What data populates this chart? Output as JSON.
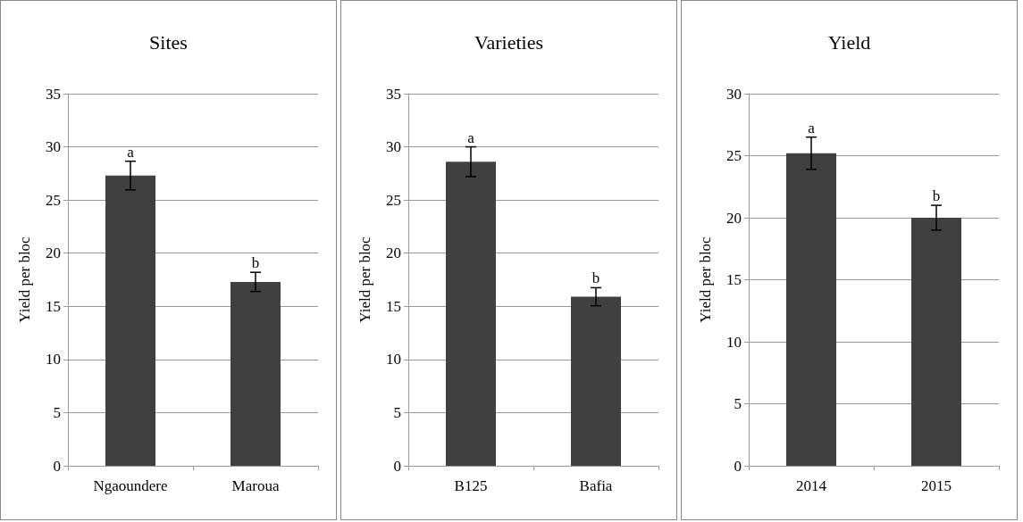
{
  "chart_data": [
    {
      "type": "bar",
      "title": "Sites",
      "ylabel": "Yield per bloc",
      "categories": [
        "Ngaoundere",
        "Maroua"
      ],
      "values": [
        27.3,
        17.3
      ],
      "errors": [
        1.35,
        0.9
      ],
      "color": "#404040",
      "ylim": [
        0,
        35
      ],
      "yticks": [
        0,
        5,
        10,
        15,
        20,
        25,
        30,
        35
      ],
      "grid": "y",
      "annotations": [
        {
          "text": "a",
          "x": "Ngaoundere",
          "y": 28.65
        },
        {
          "text": "b",
          "x": "Maroua",
          "y": 18.2
        }
      ]
    },
    {
      "type": "bar",
      "title": "Varieties",
      "ylabel": "Yield per bloc",
      "categories": [
        "B125",
        "Bafia"
      ],
      "values": [
        28.6,
        15.9
      ],
      "errors": [
        1.4,
        0.85
      ],
      "color": "#404040",
      "ylim": [
        0,
        35
      ],
      "yticks": [
        0,
        5,
        10,
        15,
        20,
        25,
        30,
        35
      ],
      "grid": "y",
      "annotations": [
        {
          "text": "a",
          "x": "B125",
          "y": 30.0
        },
        {
          "text": "b",
          "x": "Bafia",
          "y": 16.75
        }
      ]
    },
    {
      "type": "bar",
      "title": "Yield",
      "ylabel": "Yield per bloc",
      "categories": [
        "2014",
        "2015"
      ],
      "values": [
        25.2,
        20.0
      ],
      "errors": [
        1.3,
        1.0
      ],
      "color": "#404040",
      "ylim": [
        0,
        30
      ],
      "yticks": [
        0,
        5,
        10,
        15,
        20,
        25,
        30
      ],
      "grid": "y",
      "annotations": [
        {
          "text": "a",
          "x": "2014",
          "y": 26.5
        },
        {
          "text": "b",
          "x": "2015",
          "y": 21.0
        }
      ]
    }
  ]
}
